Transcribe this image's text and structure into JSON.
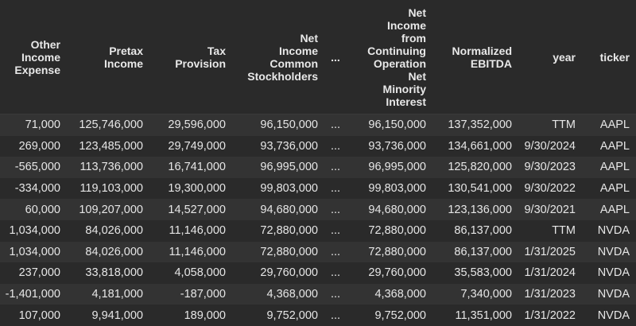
{
  "table": {
    "columns": [
      "Other Income Expense",
      "Pretax Income",
      "Tax Provision",
      "Net Income Common Stockholders",
      "...",
      "Net Income from Continuing Operation Net Minority Interest",
      "Normalized EBITDA",
      "year",
      "ticker"
    ],
    "rows": [
      [
        "71,000",
        "125,746,000",
        "29,596,000",
        "96,150,000",
        "...",
        "96,150,000",
        "137,352,000",
        "TTM",
        "AAPL"
      ],
      [
        "269,000",
        "123,485,000",
        "29,749,000",
        "93,736,000",
        "...",
        "93,736,000",
        "134,661,000",
        "9/30/2024",
        "AAPL"
      ],
      [
        "-565,000",
        "113,736,000",
        "16,741,000",
        "96,995,000",
        "...",
        "96,995,000",
        "125,820,000",
        "9/30/2023",
        "AAPL"
      ],
      [
        "-334,000",
        "119,103,000",
        "19,300,000",
        "99,803,000",
        "...",
        "99,803,000",
        "130,541,000",
        "9/30/2022",
        "AAPL"
      ],
      [
        "60,000",
        "109,207,000",
        "14,527,000",
        "94,680,000",
        "...",
        "94,680,000",
        "123,136,000",
        "9/30/2021",
        "AAPL"
      ],
      [
        "1,034,000",
        "84,026,000",
        "11,146,000",
        "72,880,000",
        "...",
        "72,880,000",
        "86,137,000",
        "TTM",
        "NVDA"
      ],
      [
        "1,034,000",
        "84,026,000",
        "11,146,000",
        "72,880,000",
        "...",
        "72,880,000",
        "86,137,000",
        "1/31/2025",
        "NVDA"
      ],
      [
        "237,000",
        "33,818,000",
        "4,058,000",
        "29,760,000",
        "...",
        "29,760,000",
        "35,583,000",
        "1/31/2024",
        "NVDA"
      ],
      [
        "-1,401,000",
        "4,181,000",
        "-187,000",
        "4,368,000",
        "...",
        "4,368,000",
        "7,340,000",
        "1/31/2023",
        "NVDA"
      ],
      [
        "107,000",
        "9,941,000",
        "189,000",
        "9,752,000",
        "...",
        "9,752,000",
        "11,351,000",
        "1/31/2022",
        "NVDA"
      ]
    ]
  },
  "colors": {
    "background": "#2a2a2a",
    "row_stripe": "#333333",
    "text": "#e6e6e6"
  }
}
